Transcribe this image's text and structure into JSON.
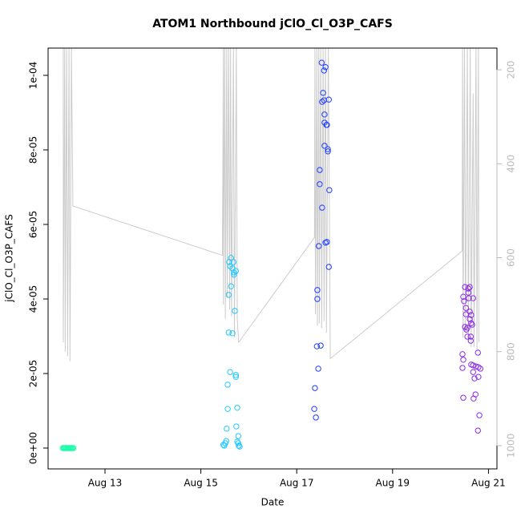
{
  "chart_data": {
    "type": "scatter",
    "title": "ATOM1 Northbound jClO_Cl_O3P_CAFS",
    "x_label": "Date",
    "y_label": "jClO_Cl_O3P_CAFS",
    "xlim": [
      11.813,
      21.177
    ],
    "xticks": [
      {
        "value": 13,
        "label": "Aug 13"
      },
      {
        "value": 15,
        "label": "Aug 15"
      },
      {
        "value": 17,
        "label": "Aug 17"
      },
      {
        "value": 19,
        "label": "Aug 19"
      },
      {
        "value": 21,
        "label": "Aug 21"
      }
    ],
    "ylim": [
      -5.59e-06,
      0.00010731
    ],
    "yticks": [
      {
        "value": 0,
        "label": "0e+00"
      },
      {
        "value": 2e-05,
        "label": "2e-05"
      },
      {
        "value": 4e-05,
        "label": "4e-05"
      },
      {
        "value": 6e-05,
        "label": "6e-05"
      },
      {
        "value": 8e-05,
        "label": "8e-05"
      },
      {
        "value": 0.0001,
        "label": "1e-04"
      }
    ],
    "y2lim": [
      1049.6,
      153.8
    ],
    "y2ticks": [
      200,
      400,
      600,
      800,
      1000
    ],
    "y2_color": "#bbbbbb",
    "series": [
      {
        "style": "line",
        "axis": "y2",
        "color": "#cccccc",
        "x": [
          12.13,
          12.13,
          12.16,
          12.17,
          12.2,
          12.22,
          12.25,
          12.27,
          12.3,
          12.33,
          15.45,
          15.47,
          15.47,
          15.5,
          15.51,
          15.54,
          15.55,
          15.58,
          15.6,
          15.62,
          15.64,
          15.68,
          15.7,
          15.74,
          15.76,
          15.79,
          17.37,
          17.38,
          17.39,
          17.42,
          17.43,
          17.46,
          17.47,
          17.5,
          17.52,
          17.55,
          17.57,
          17.6,
          17.62,
          17.66,
          17.7,
          20.45,
          20.46,
          20.47,
          20.5,
          20.52,
          20.56,
          20.58,
          20.62,
          20.64,
          20.68,
          20.7,
          20.74,
          20.76,
          20.79,
          20.8
        ],
        "values": [
          150,
          780,
          150,
          800,
          150,
          810,
          150,
          820,
          150,
          490,
          595,
          150,
          700,
          150,
          730,
          150,
          685,
          150,
          710,
          150,
          725,
          150,
          770,
          150,
          730,
          780,
          557,
          150,
          720,
          150,
          745,
          150,
          740,
          150,
          750,
          150,
          735,
          150,
          760,
          150,
          815,
          586,
          150,
          770,
          150,
          760,
          150,
          780,
          150,
          790,
          250,
          790,
          150,
          800,
          150,
          780
        ]
      },
      {
        "style": "points",
        "color": "#19ffa8",
        "x": [
          12.12,
          12.14,
          12.16,
          12.18,
          12.2,
          12.22,
          12.24,
          12.26,
          12.28,
          12.3,
          12.32,
          12.34
        ],
        "values": [
          0,
          0,
          0,
          0,
          0,
          0,
          0,
          0,
          0,
          0,
          0,
          0
        ]
      },
      {
        "style": "points",
        "color": "#1ec8ff",
        "x": [
          15.47,
          15.51,
          15.53,
          15.49,
          15.79,
          15.78,
          15.54,
          15.56,
          15.56,
          15.61,
          15.58,
          15.58,
          15.66,
          15.71,
          15.63,
          15.66,
          15.61,
          15.68,
          15.69,
          15.73,
          15.69,
          15.73,
          15.73,
          15.76,
          15.74,
          15.78,
          15.76,
          15.81,
          15.63,
          15.59
        ],
        "values": [
          8.6e-07,
          1.3e-06,
          1.9e-06,
          6.5e-07,
          6.5e-07,
          1.3e-06,
          5.2e-06,
          1.05e-05,
          1.7e-05,
          2.04e-05,
          3.1e-05,
          4.11e-05,
          3.08e-05,
          3.68e-05,
          4.34e-05,
          4.82e-05,
          4.88e-05,
          4.99e-05,
          4.65e-05,
          4.75e-05,
          4.71e-05,
          1.96e-05,
          1.91e-05,
          1.08e-05,
          5.8e-06,
          3.2e-06,
          1.7e-06,
          4e-07,
          5.1e-05,
          4.99e-05
        ]
      },
      {
        "style": "points",
        "color": "#1e3cff",
        "x": [
          17.365,
          17.38,
          17.4,
          17.42,
          17.5,
          17.45,
          17.43,
          17.43,
          17.46,
          17.48,
          17.48,
          17.53,
          17.52,
          17.53,
          17.57,
          17.57,
          17.55,
          17.58,
          17.58,
          17.6,
          17.62,
          17.63,
          17.58,
          17.65,
          17.65,
          17.68,
          17.63,
          17.6,
          17.67,
          17.67
        ],
        "values": [
          1.05e-05,
          1.61e-05,
          8.2e-06,
          2.73e-05,
          2.75e-05,
          2.13e-05,
          4.24e-05,
          4e-05,
          5.42e-05,
          7.46e-05,
          7.08e-05,
          6.45e-05,
          0.0001034,
          9.29e-05,
          9.33e-05,
          0.0001013,
          9.53e-05,
          8.95e-05,
          8.73e-05,
          0.0001022,
          8.67e-05,
          8.67e-05,
          8.11e-05,
          8.02e-05,
          7.96e-05,
          6.92e-05,
          5.53e-05,
          5.51e-05,
          4.86e-05,
          9.35e-05
        ]
      },
      {
        "style": "points",
        "color": "#8a2be2",
        "x": [
          20.458,
          20.458,
          20.475,
          20.475,
          20.475,
          20.51,
          20.49,
          20.53,
          20.51,
          20.54,
          20.53,
          20.56,
          20.58,
          20.58,
          20.61,
          20.59,
          20.61,
          20.56,
          20.61,
          20.63,
          20.64,
          20.64,
          20.66,
          20.63,
          20.64,
          20.68,
          20.69,
          20.73,
          20.74,
          20.71,
          20.78,
          20.79,
          20.79,
          20.81,
          20.78,
          20.83,
          20.68,
          20.68
        ],
        "values": [
          2.15e-05,
          2.52e-05,
          2.37e-05,
          1.35e-05,
          4.06e-05,
          4.32e-05,
          3.94e-05,
          3.59e-05,
          3.25e-05,
          3.18e-05,
          3.76e-05,
          3.23e-05,
          4.28e-05,
          4.17e-05,
          4.32e-05,
          4.02e-05,
          3.46e-05,
          2.99e-05,
          3.66e-05,
          2.99e-05,
          3.57e-05,
          3.35e-05,
          3.31e-05,
          2.88e-05,
          2.24e-05,
          2.22e-05,
          1.33e-05,
          1.44e-05,
          2.19e-05,
          1.87e-05,
          2.56e-05,
          2.17e-05,
          1.91e-05,
          8.8e-06,
          4.7e-06,
          2.13e-05,
          2.04e-05,
          4.02e-05
        ]
      }
    ]
  }
}
